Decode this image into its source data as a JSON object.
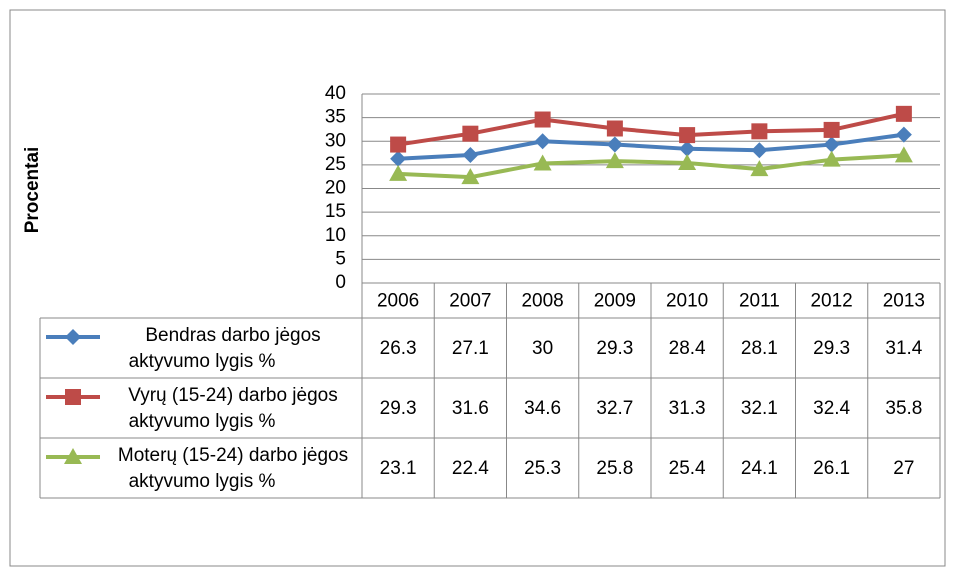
{
  "chart_data": {
    "type": "line",
    "y_axis_label": "Procentai",
    "categories": [
      "2006",
      "2007",
      "2008",
      "2009",
      "2010",
      "2011",
      "2012",
      "2013"
    ],
    "series": [
      {
        "name": "Bendras darbo jėgos aktyvumo lygis %",
        "color": "#4a7ebb",
        "marker": "diamond",
        "values": [
          26.3,
          27.1,
          30,
          29.3,
          28.4,
          28.1,
          29.3,
          31.4
        ]
      },
      {
        "name": "Vyrų (15-24) darbo jėgos aktyvumo lygis %",
        "color": "#be4b48",
        "marker": "square",
        "values": [
          29.3,
          31.6,
          34.6,
          32.7,
          31.3,
          32.1,
          32.4,
          35.8
        ]
      },
      {
        "name": "Moterų (15-24) darbo jėgos aktyvumo lygis %",
        "color": "#98b954",
        "marker": "triangle",
        "values": [
          23.1,
          22.4,
          25.3,
          25.8,
          25.4,
          24.1,
          26.1,
          27
        ]
      }
    ],
    "ylim": [
      0,
      40
    ],
    "yticks": [
      0,
      5,
      10,
      15,
      20,
      25,
      30,
      35,
      40
    ],
    "grid": true,
    "data_table": true
  }
}
